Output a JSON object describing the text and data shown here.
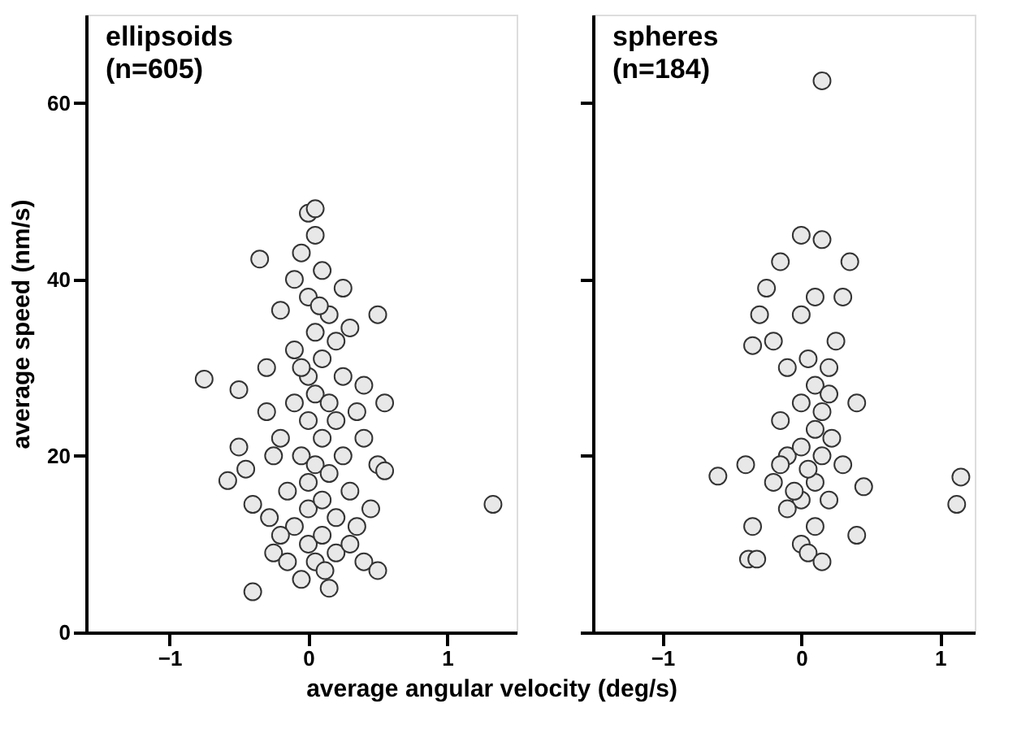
{
  "chart_data": [
    {
      "type": "scatter",
      "title": "ellipsoids",
      "subtitle": "(n=605)",
      "xlabel": "average angular velocity (deg/s)",
      "ylabel": "average speed (nm/s)",
      "xlim": [
        -1.6,
        1.5
      ],
      "xticks": [
        -1,
        0,
        1
      ],
      "ylim": [
        0,
        70
      ],
      "yticks": [
        0,
        20,
        40,
        60
      ],
      "marker": "circle",
      "grid": false,
      "series": [
        {
          "color": "#e8e8e8",
          "x": [
            -0.75,
            -0.58,
            -0.5,
            -0.5,
            -0.45,
            -0.4,
            -0.4,
            -0.35,
            -0.3,
            -0.3,
            -0.28,
            -0.25,
            -0.2,
            -0.2,
            -0.15,
            -0.15,
            -0.1,
            -0.1,
            -0.1,
            -0.1,
            -0.05,
            -0.05,
            -0.05,
            0,
            0,
            0,
            0,
            0,
            0,
            0,
            0.05,
            0.05,
            0.05,
            0.05,
            0.05,
            0.05,
            0.1,
            0.1,
            0.1,
            0.1,
            0.1,
            0.15,
            0.15,
            0.15,
            0.15,
            0.2,
            0.2,
            0.2,
            0.2,
            0.25,
            0.25,
            0.25,
            0.3,
            0.3,
            0.3,
            0.35,
            0.35,
            0.4,
            0.4,
            0.4,
            0.45,
            0.5,
            0.5,
            0.5,
            0.55,
            0.55,
            1.33,
            -0.2,
            -0.25,
            0.12,
            -0.05,
            0.08
          ],
          "values": [
            28.7,
            17.2,
            27.5,
            21,
            18.5,
            14.5,
            4.6,
            42.3,
            30,
            25,
            13,
            9,
            36.5,
            22,
            16,
            8,
            40,
            32,
            26,
            12,
            43,
            20,
            6,
            47.5,
            38,
            29,
            24,
            17,
            14,
            10,
            48,
            45,
            34,
            27,
            19,
            8,
            41,
            31,
            22,
            15,
            11,
            36,
            26,
            18,
            5,
            33,
            24,
            13,
            9,
            39,
            29,
            20,
            34.5,
            16,
            10,
            25,
            12,
            28,
            22,
            8,
            14,
            36,
            19,
            7,
            26,
            18.3,
            14.5,
            11,
            20,
            7,
            30,
            37
          ]
        }
      ]
    },
    {
      "type": "scatter",
      "title": "spheres",
      "subtitle": "(n=184)",
      "xlim": [
        -1.5,
        1.25
      ],
      "xticks": [
        -1,
        0,
        1
      ],
      "ylim": [
        0,
        70
      ],
      "yticks": [
        0,
        20,
        40,
        60
      ],
      "tick_labels": "x",
      "marker": "circle",
      "grid": false,
      "series": [
        {
          "color": "#e8e8e8",
          "x": [
            0.15,
            -0.35,
            -0.3,
            -0.25,
            -0.2,
            -0.15,
            -0.1,
            -0.1,
            0,
            0,
            0,
            -0.15,
            0,
            0,
            0.05,
            0.22,
            0.1,
            0.1,
            0.1,
            0.1,
            0.15,
            0.15,
            0.15,
            0.2,
            0.2,
            0.25,
            0.3,
            0.3,
            0.35,
            0.4,
            0.4,
            0.45,
            -0.6,
            -0.4,
            -0.35,
            -0.38,
            -0.32,
            -0.2,
            -0.05,
            0.05,
            0.15,
            0.2,
            -0.1,
            1.15,
            1.12,
            0.05,
            0,
            0.1,
            -0.15
          ],
          "values": [
            62.5,
            32.5,
            36,
            39,
            33,
            42,
            30,
            20,
            45,
            36,
            26,
            19,
            15,
            10,
            31,
            22,
            38,
            28,
            17,
            12,
            44.5,
            25,
            20,
            27,
            15,
            33,
            38,
            19,
            42,
            26,
            11,
            16.5,
            17.7,
            19,
            12,
            8.3,
            8.3,
            17,
            16,
            9,
            8,
            30,
            14,
            17.6,
            14.5,
            18.5,
            21,
            23,
            24
          ]
        }
      ]
    }
  ]
}
